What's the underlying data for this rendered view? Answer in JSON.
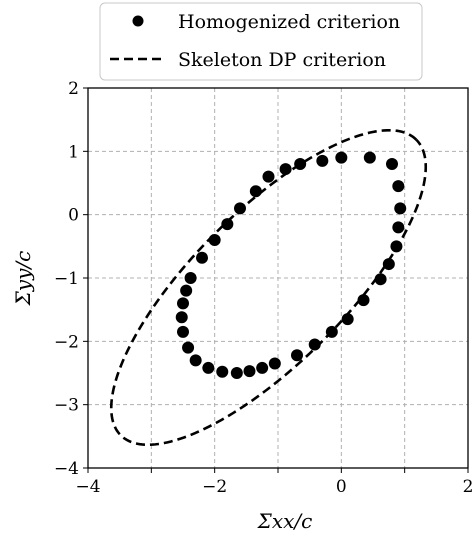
{
  "chart_data": {
    "type": "scatter",
    "xlabel": "Σxx/c",
    "ylabel": "Σyy/c",
    "xlim": [
      -4,
      2
    ],
    "ylim": [
      -4,
      2
    ],
    "x_ticks": [
      "−4",
      "−2",
      "0",
      "2"
    ],
    "y_ticks": [
      "2",
      "1",
      "0",
      "−1",
      "−2",
      "−3",
      "−4"
    ],
    "grid": true,
    "legend_position": "top",
    "series": [
      {
        "name": "Homogenized criterion",
        "style": "markers",
        "color": "#000000",
        "points": [
          [
            0.0,
            0.9
          ],
          [
            0.45,
            0.9
          ],
          [
            0.8,
            0.8
          ],
          [
            0.9,
            0.45
          ],
          [
            0.93,
            0.1
          ],
          [
            0.9,
            -0.2
          ],
          [
            0.87,
            -0.5
          ],
          [
            0.75,
            -0.78
          ],
          [
            0.62,
            -1.02
          ],
          [
            0.35,
            -1.35
          ],
          [
            0.1,
            -1.65
          ],
          [
            -0.15,
            -1.85
          ],
          [
            -0.42,
            -2.05
          ],
          [
            -0.7,
            -2.22
          ],
          [
            -1.05,
            -2.35
          ],
          [
            -1.25,
            -2.42
          ],
          [
            -1.45,
            -2.47
          ],
          [
            -1.65,
            -2.5
          ],
          [
            -1.88,
            -2.48
          ],
          [
            -2.1,
            -2.42
          ],
          [
            -2.3,
            -2.3
          ],
          [
            -2.42,
            -2.1
          ],
          [
            -2.5,
            -1.85
          ],
          [
            -2.52,
            -1.62
          ],
          [
            -2.5,
            -1.4
          ],
          [
            -2.45,
            -1.2
          ],
          [
            -2.38,
            -1.0
          ],
          [
            -2.2,
            -0.68
          ],
          [
            -2.0,
            -0.4
          ],
          [
            -1.8,
            -0.15
          ],
          [
            -1.6,
            0.1
          ],
          [
            -1.35,
            0.37
          ],
          [
            -1.15,
            0.6
          ],
          [
            -0.88,
            0.72
          ],
          [
            -0.65,
            0.8
          ],
          [
            -0.3,
            0.85
          ]
        ]
      },
      {
        "name": "Skeleton DP criterion",
        "style": "dashed",
        "color": "#000000",
        "ellipse": {
          "center": [
            -1.15,
            -1.15
          ],
          "major_semi_axis": 3.3,
          "minor_semi_axis": 1.2,
          "angle_deg": 45
        }
      }
    ]
  }
}
